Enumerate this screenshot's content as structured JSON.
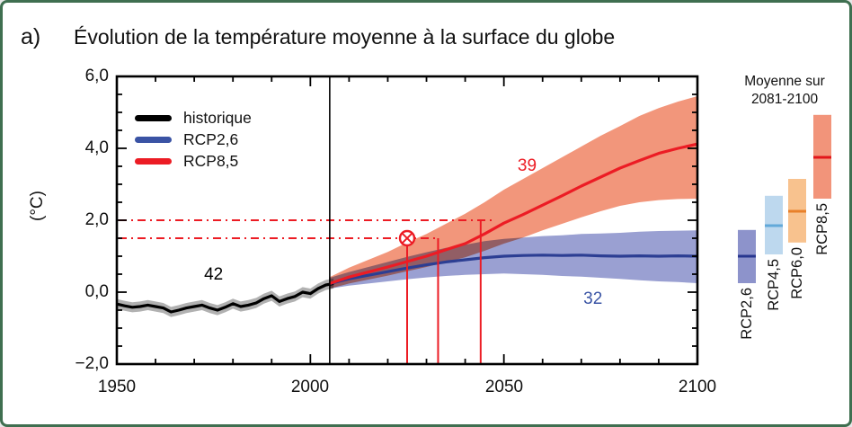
{
  "header": {
    "panel_label": "a)",
    "title": "Évolution de la température moyenne à la surface du globe"
  },
  "axes": {
    "y": {
      "unit_label": "(°C)",
      "tick_labels": [
        "6,0",
        "4,0",
        "2,0",
        "0,0",
        "−2,0"
      ],
      "tick_values": [
        6,
        4,
        2,
        0,
        -2
      ],
      "minor_step": 0.5,
      "range": [
        -2,
        6
      ]
    },
    "x": {
      "tick_labels": [
        "1950",
        "2000",
        "2050",
        "2100"
      ],
      "tick_values": [
        1950,
        2000,
        2050,
        2100
      ],
      "minor_step": 10,
      "range": [
        1950,
        2100
      ]
    }
  },
  "legend": {
    "items": [
      {
        "label": "historique",
        "color": "#000000"
      },
      {
        "label": "RCP2,6",
        "color": "#3a53a4"
      },
      {
        "label": "RCP8,5",
        "color": "#ec1c24"
      }
    ]
  },
  "chart_data": {
    "type": "line",
    "title": "Évolution de la température moyenne à la surface du globe",
    "xlabel": "",
    "ylabel": "(°C)",
    "xlim": [
      1950,
      2100
    ],
    "ylim": [
      -2,
      6
    ],
    "divider_year": 2005,
    "series": [
      {
        "name": "historique",
        "line_color": "#000000",
        "band_color": "#b1b1b1",
        "band_halfwidth": 0.14,
        "years": [
          1950,
          1952,
          1954,
          1956,
          1958,
          1960,
          1962,
          1964,
          1966,
          1968,
          1970,
          1972,
          1974,
          1976,
          1978,
          1980,
          1982,
          1984,
          1986,
          1988,
          1990,
          1992,
          1994,
          1996,
          1998,
          2000,
          2002,
          2004,
          2006
        ],
        "mean": [
          -0.33,
          -0.38,
          -0.42,
          -0.4,
          -0.36,
          -0.4,
          -0.44,
          -0.55,
          -0.5,
          -0.44,
          -0.4,
          -0.36,
          -0.44,
          -0.5,
          -0.42,
          -0.32,
          -0.4,
          -0.36,
          -0.3,
          -0.18,
          -0.1,
          -0.26,
          -0.18,
          -0.12,
          0.0,
          -0.04,
          0.1,
          0.2,
          0.24
        ]
      },
      {
        "name": "RCP2,6",
        "line_color": "#2c3e93",
        "band_color": "#9aa0d2",
        "years": [
          2005,
          2010,
          2015,
          2020,
          2025,
          2030,
          2035,
          2040,
          2045,
          2050,
          2055,
          2060,
          2065,
          2070,
          2075,
          2080,
          2085,
          2090,
          2095,
          2100
        ],
        "mean": [
          0.24,
          0.37,
          0.47,
          0.57,
          0.67,
          0.76,
          0.84,
          0.9,
          0.96,
          1.0,
          1.02,
          1.03,
          1.02,
          1.03,
          1.01,
          1.0,
          1.01,
          1.0,
          1.01,
          1.0
        ],
        "lo": [
          0.1,
          0.18,
          0.24,
          0.3,
          0.36,
          0.41,
          0.45,
          0.48,
          0.5,
          0.52,
          0.5,
          0.48,
          0.45,
          0.43,
          0.4,
          0.37,
          0.33,
          0.3,
          0.28,
          0.25
        ],
        "hi": [
          0.4,
          0.56,
          0.7,
          0.84,
          0.98,
          1.11,
          1.23,
          1.32,
          1.42,
          1.48,
          1.52,
          1.56,
          1.58,
          1.62,
          1.63,
          1.65,
          1.68,
          1.7,
          1.71,
          1.72
        ]
      },
      {
        "name": "RCP8,5",
        "line_color": "#ec1c24",
        "band_color": "#f2967b",
        "years": [
          2005,
          2010,
          2015,
          2020,
          2025,
          2030,
          2035,
          2040,
          2045,
          2050,
          2055,
          2060,
          2065,
          2070,
          2075,
          2080,
          2085,
          2090,
          2095,
          2100
        ],
        "mean": [
          0.24,
          0.42,
          0.56,
          0.7,
          0.85,
          1.0,
          1.18,
          1.35,
          1.62,
          1.92,
          2.16,
          2.42,
          2.68,
          2.95,
          3.2,
          3.45,
          3.66,
          3.86,
          4.0,
          4.12
        ],
        "lo": [
          0.1,
          0.24,
          0.35,
          0.46,
          0.58,
          0.7,
          0.83,
          0.97,
          1.15,
          1.35,
          1.52,
          1.72,
          1.9,
          2.08,
          2.25,
          2.4,
          2.5,
          2.56,
          2.59,
          2.6
        ],
        "hi": [
          0.42,
          0.68,
          0.9,
          1.12,
          1.38,
          1.62,
          1.9,
          2.18,
          2.5,
          2.85,
          3.15,
          3.45,
          3.75,
          4.05,
          4.35,
          4.62,
          4.9,
          5.12,
          5.3,
          5.45
        ]
      }
    ],
    "model_counts": [
      {
        "text": "42",
        "color": "#000000",
        "year": 1975,
        "value": 0.47
      },
      {
        "text": "39",
        "color": "#ec1c24",
        "year": 2056,
        "value": 3.5
      },
      {
        "text": "32",
        "color": "#3b55a5",
        "year": 2073,
        "value": -0.2
      }
    ],
    "thresholds": [
      {
        "value": 2.0,
        "end_year": 2047,
        "color": "#ec1c24"
      },
      {
        "value": 1.5,
        "end_year": 2033,
        "color": "#ec1c24"
      }
    ],
    "event_lines": [
      {
        "year": 2025,
        "top_value": 1.5,
        "marker": "circle-x",
        "color": "#ec1c24"
      },
      {
        "year": 2033,
        "top_value": 1.5,
        "marker": "none",
        "color": "#ec1c24"
      },
      {
        "year": 2044,
        "top_value": 2.0,
        "marker": "none",
        "color": "#ec1c24"
      }
    ],
    "side_panel": {
      "title_line1": "Moyenne sur",
      "title_line2": "2081-2100",
      "bars": {
        "categories": [
          "RCP2,6",
          "RCP4,5",
          "RCP6,0",
          "RCP8,5"
        ],
        "lo": [
          0.25,
          1.05,
          1.38,
          2.6
        ],
        "hi": [
          1.73,
          2.68,
          3.15,
          4.93
        ],
        "median": [
          1.0,
          1.85,
          2.25,
          3.75
        ],
        "fill_colors": [
          "#8d93cb",
          "#bdd8ee",
          "#f8c28e",
          "#f2947a"
        ],
        "median_colors": [
          "#27368f",
          "#62a9d9",
          "#e8802a",
          "#e2161b"
        ]
      }
    }
  }
}
